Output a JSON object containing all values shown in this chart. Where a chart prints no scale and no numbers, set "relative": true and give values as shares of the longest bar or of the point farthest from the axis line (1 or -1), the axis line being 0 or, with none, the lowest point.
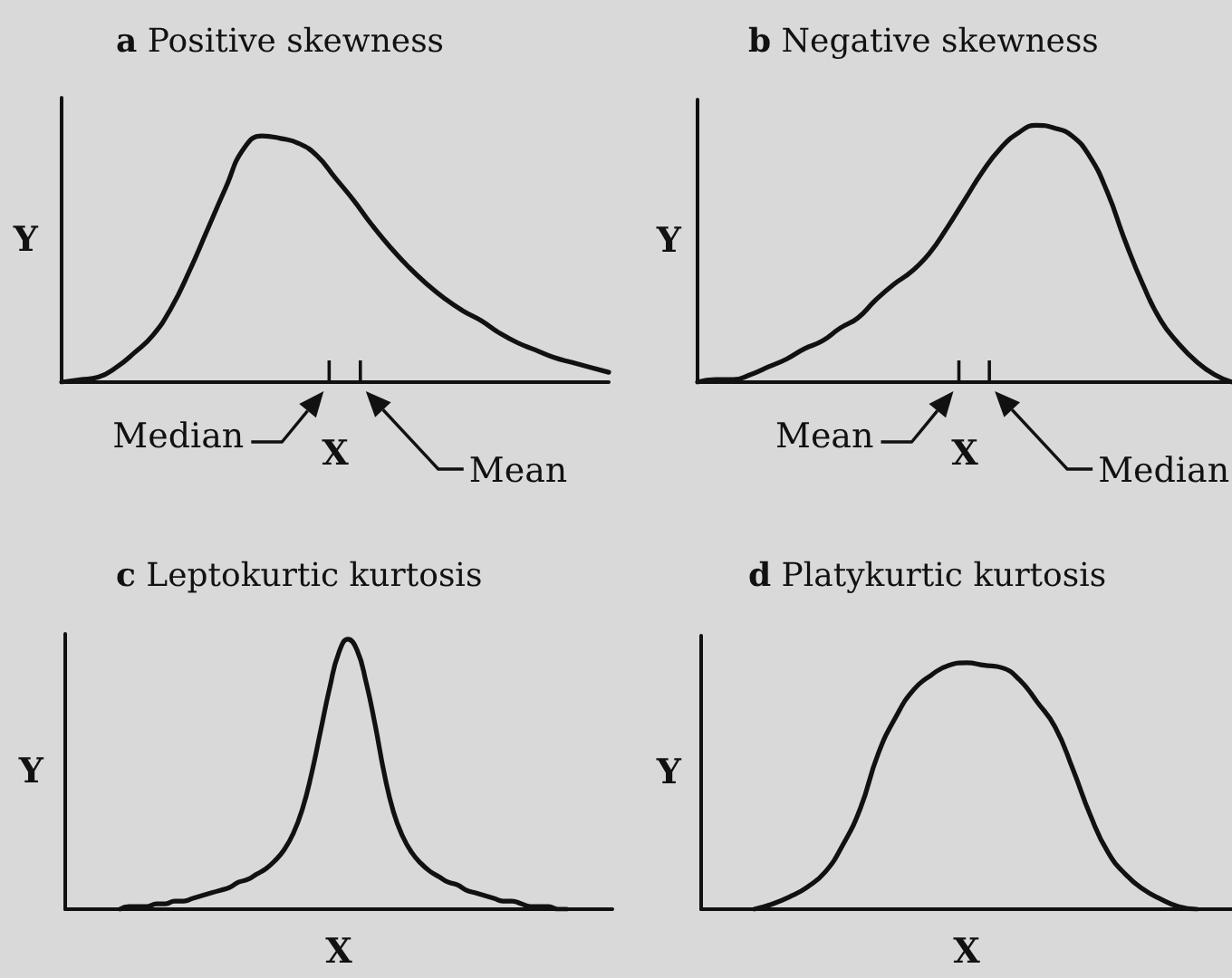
{
  "chart_data": [
    {
      "type": "line",
      "title": "a Positive skewness",
      "xlabel": "X",
      "ylabel": "Y",
      "relative": true,
      "tick_labels": false,
      "annotations": [
        "Median",
        "Mean"
      ],
      "categories": [
        null,
        null,
        null,
        null,
        null,
        null,
        null,
        null,
        null,
        null,
        null,
        null,
        null,
        null,
        null,
        null,
        null,
        null,
        null,
        null,
        null,
        null,
        null,
        null,
        null,
        null,
        null,
        null,
        null,
        null,
        null
      ],
      "series": [
        {
          "color": "#111111",
          "values": [
            0,
            0.01,
            0.02,
            0.06,
            0.12,
            0.19,
            0.3,
            0.45,
            0.62,
            0.79,
            0.95,
            1,
            0.99,
            0.97,
            0.92,
            0.83,
            0.74,
            0.64,
            0.55,
            0.47,
            0.4,
            0.34,
            0.29,
            0.25,
            0.2,
            0.16,
            0.13,
            0.1,
            0.08,
            0.06,
            0.04
          ]
        }
      ]
    },
    {
      "type": "line",
      "title": "b Negative skewness",
      "xlabel": "X",
      "ylabel": "Y",
      "relative": true,
      "tick_labels": false,
      "annotations": [
        "Mean",
        "Median"
      ],
      "categories": [
        null,
        null,
        null,
        null,
        null,
        null,
        null,
        null,
        null,
        null,
        null,
        null,
        null,
        null,
        null,
        null,
        null,
        null,
        null,
        null,
        null,
        null,
        null,
        null,
        null,
        null,
        null,
        null,
        null,
        null,
        null
      ],
      "series": [
        {
          "color": "#111111",
          "values": [
            0,
            0.01,
            0.01,
            0.03,
            0.06,
            0.09,
            0.13,
            0.16,
            0.21,
            0.25,
            0.32,
            0.38,
            0.43,
            0.5,
            0.6,
            0.71,
            0.82,
            0.91,
            0.97,
            1,
            0.99,
            0.96,
            0.88,
            0.74,
            0.55,
            0.38,
            0.24,
            0.15,
            0.08,
            0.03,
            0
          ]
        }
      ]
    },
    {
      "type": "line",
      "title": "c Leptokurtic kurtosis",
      "xlabel": "X",
      "ylabel": "Y",
      "relative": true,
      "tick_labels": false,
      "categories": [
        null,
        null,
        null,
        null,
        null,
        null,
        null,
        null,
        null,
        null,
        null,
        null,
        null,
        null,
        null,
        null,
        null,
        null,
        null,
        null,
        null,
        null,
        null,
        null,
        null,
        null,
        null,
        null,
        null,
        null,
        null,
        null,
        null,
        null,
        null,
        null,
        null,
        null,
        null,
        null,
        null,
        null,
        null,
        null,
        null,
        null,
        null,
        null,
        null,
        null,
        null,
        null,
        null,
        null,
        null,
        null,
        null,
        null,
        null,
        null,
        null
      ],
      "series": [
        {
          "color": "#111111",
          "values": [
            null,
            null,
            null,
            null,
            null,
            null,
            0,
            0.01,
            0.01,
            0.01,
            0.02,
            0.02,
            0.03,
            0.03,
            0.04,
            0.05,
            0.06,
            0.07,
            0.08,
            0.1,
            0.11,
            0.13,
            0.15,
            0.18,
            0.22,
            0.28,
            0.37,
            0.5,
            0.66,
            0.82,
            0.95,
            1,
            0.96,
            0.84,
            0.68,
            0.5,
            0.36,
            0.27,
            0.21,
            0.17,
            0.14,
            0.12,
            0.1,
            0.09,
            0.07,
            0.06,
            0.05,
            0.04,
            0.03,
            0.03,
            0.02,
            0.01,
            0.01,
            0.01,
            0,
            0,
            null,
            null,
            null,
            null,
            null
          ]
        }
      ]
    },
    {
      "type": "line",
      "title": "d Platykurtic kurtosis",
      "xlabel": "X",
      "ylabel": "Y",
      "relative": true,
      "tick_labels": false,
      "categories": [
        null,
        null,
        null,
        null,
        null,
        null,
        null,
        null,
        null,
        null,
        null,
        null,
        null,
        null,
        null,
        null,
        null,
        null,
        null,
        null,
        null,
        null,
        null,
        null,
        null,
        null,
        null,
        null,
        null,
        null,
        null
      ],
      "series": [
        {
          "color": "#111111",
          "values": [
            null,
            null,
            null,
            0,
            0.02,
            0.05,
            0.09,
            0.15,
            0.26,
            0.41,
            0.63,
            0.78,
            0.89,
            0.95,
            0.99,
            1,
            0.99,
            0.98,
            0.93,
            0.84,
            0.74,
            0.57,
            0.38,
            0.23,
            0.14,
            0.08,
            0.04,
            0.01,
            0,
            null,
            null
          ]
        }
      ]
    }
  ]
}
